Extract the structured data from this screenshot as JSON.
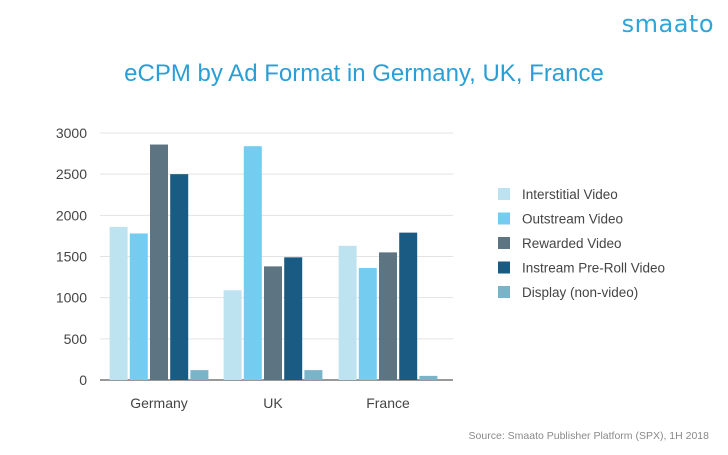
{
  "logo": "smaato",
  "source": "Source: Smaato Publisher Platform (SPX), 1H 2018",
  "chart_data": {
    "type": "bar",
    "title": "eCPM by Ad Format in Germany, UK, France",
    "xlabel": "",
    "ylabel": "",
    "ylim": [
      0,
      3000
    ],
    "yticks": [
      0,
      500,
      1000,
      1500,
      2000,
      2500,
      3000
    ],
    "grid": true,
    "legend_position": "right",
    "categories": [
      "Germany",
      "UK",
      "France"
    ],
    "series": [
      {
        "name": "Interstitial Video",
        "color": "#bde3f1",
        "values": [
          1860,
          1090,
          1630
        ]
      },
      {
        "name": "Outstream Video",
        "color": "#74cdf0",
        "values": [
          1780,
          2840,
          1360
        ]
      },
      {
        "name": "Rewarded Video",
        "color": "#5d7582",
        "values": [
          2860,
          1380,
          1550
        ]
      },
      {
        "name": "Instream Pre-Roll Video",
        "color": "#195b82",
        "values": [
          2500,
          1490,
          1790
        ]
      },
      {
        "name": "Display (non-video)",
        "color": "#7ab4c8",
        "values": [
          120,
          120,
          50
        ]
      }
    ]
  }
}
